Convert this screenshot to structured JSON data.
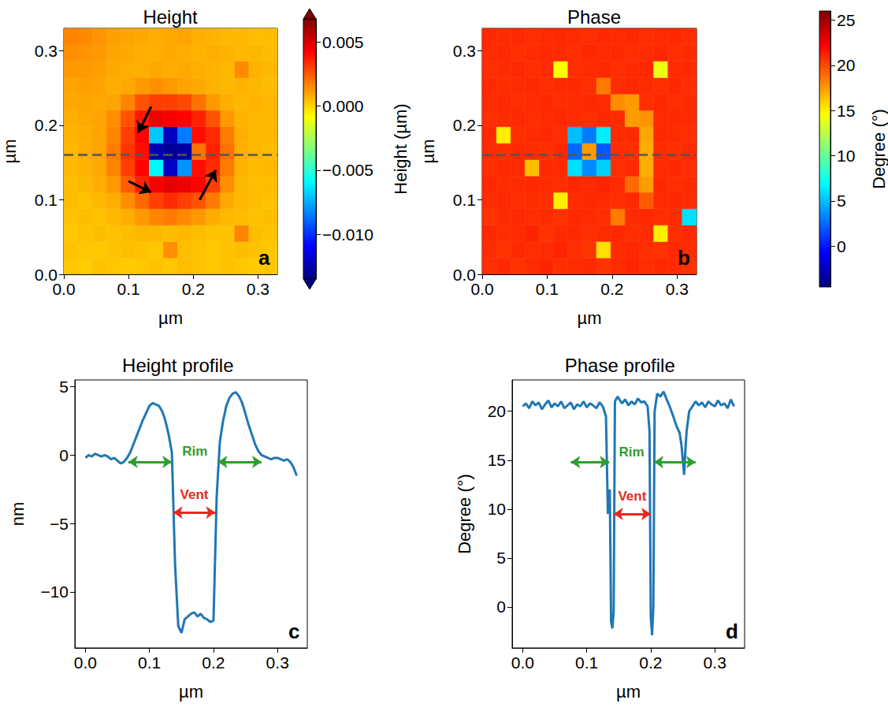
{
  "chart_data": [
    {
      "type": "heatmap",
      "title": "Height",
      "panel": "a",
      "xlabel": "µm",
      "ylabel": "µm",
      "x": [
        0.011,
        0.033,
        0.055,
        0.077,
        0.099,
        0.121,
        0.143,
        0.165,
        0.187,
        0.209,
        0.231,
        0.253,
        0.275,
        0.297,
        0.319
      ],
      "y": [
        0.011,
        0.033,
        0.055,
        0.077,
        0.099,
        0.121,
        0.143,
        0.165,
        0.187,
        0.209,
        0.231,
        0.253,
        0.275,
        0.297,
        0.319
      ],
      "z": [
        [
          0.0003,
          0.0002,
          0.0004,
          0.0003,
          0.0002,
          0.0003,
          0.0004,
          0.0003,
          0.0005,
          0.0004,
          0.0003,
          0.0004,
          0.0003,
          0.0002,
          0.0003
        ],
        [
          0.0004,
          0.0003,
          0.0003,
          0.0004,
          0.0005,
          0.0004,
          0.0003,
          0.0014,
          0.0005,
          0.0004,
          0.0003,
          0.0004,
          0.0005,
          0.0004,
          0.0003
        ],
        [
          0.0003,
          0.0004,
          0.0005,
          0.0004,
          0.0005,
          0.0006,
          0.0006,
          0.0005,
          0.0006,
          0.0005,
          0.0004,
          0.0004,
          0.0016,
          0.0005,
          0.0004
        ],
        [
          0.0004,
          0.0005,
          0.0004,
          0.0006,
          0.0008,
          0.0012,
          0.0016,
          0.0018,
          0.0015,
          0.0012,
          0.0008,
          0.0006,
          0.0005,
          0.0004,
          0.0005
        ],
        [
          0.0005,
          0.0004,
          0.0006,
          0.0008,
          0.0014,
          0.0022,
          0.003,
          0.0034,
          0.003,
          0.0026,
          0.0018,
          0.0009,
          0.0006,
          0.0005,
          0.0004
        ],
        [
          0.0005,
          0.0006,
          0.0008,
          0.0012,
          0.0024,
          0.0036,
          0.0044,
          0.0048,
          0.0046,
          0.0042,
          0.003,
          0.0014,
          0.0006,
          0.0005,
          0.0005
        ],
        [
          0.0006,
          0.0007,
          0.0009,
          0.0016,
          0.003,
          0.0042,
          -0.006,
          -0.012,
          -0.008,
          0.004,
          0.0034,
          0.0018,
          0.0007,
          0.0005,
          0.0006
        ],
        [
          0.0006,
          0.0008,
          0.001,
          0.0018,
          0.0032,
          0.004,
          -0.0125,
          -0.013,
          -0.0128,
          0.002,
          0.0036,
          0.002,
          0.0008,
          0.0006,
          0.0005
        ],
        [
          0.0007,
          0.0008,
          0.001,
          0.0016,
          0.003,
          0.0042,
          -0.007,
          -0.0122,
          -0.0085,
          0.004,
          0.0034,
          0.0018,
          0.0008,
          0.0006,
          0.0006
        ],
        [
          0.0008,
          0.0009,
          0.001,
          0.0014,
          0.0026,
          0.0038,
          0.0046,
          0.0044,
          0.0042,
          0.0036,
          0.0026,
          0.0012,
          0.0007,
          0.0006,
          0.0006
        ],
        [
          0.0009,
          0.001,
          0.0009,
          0.001,
          0.0016,
          0.0026,
          0.003,
          0.003,
          0.0028,
          0.002,
          0.0012,
          0.0008,
          0.0006,
          0.0007,
          0.0006
        ],
        [
          0.001,
          0.0011,
          0.001,
          0.0008,
          0.0009,
          0.0012,
          0.0014,
          0.0012,
          0.001,
          0.0009,
          0.0007,
          0.0006,
          0.0007,
          0.0006,
          0.0005
        ],
        [
          0.0012,
          0.0012,
          0.0011,
          0.0009,
          0.0008,
          0.0008,
          0.0009,
          0.0008,
          0.0009,
          0.0008,
          0.0007,
          0.0006,
          0.0015,
          0.0007,
          0.0006
        ],
        [
          0.0014,
          0.0013,
          0.0012,
          0.001,
          0.0009,
          0.0008,
          0.0008,
          0.0009,
          0.0008,
          0.0007,
          0.0008,
          0.0007,
          0.0006,
          0.0006,
          0.0005
        ],
        [
          0.0016,
          0.0015,
          0.0013,
          0.0011,
          0.001,
          0.0009,
          0.0008,
          0.0009,
          0.001,
          0.0008,
          0.0007,
          0.0006,
          0.0006,
          0.0005,
          0.0005
        ]
      ],
      "xlim": [
        0,
        0.33
      ],
      "ylim": [
        0,
        0.33
      ],
      "xticks": [
        {
          "value": 0,
          "label": "0.0"
        },
        {
          "value": 0.1,
          "label": "0.1"
        },
        {
          "value": 0.2,
          "label": "0.2"
        },
        {
          "value": 0.3,
          "label": "0.3"
        }
      ],
      "yticks": [
        {
          "value": 0,
          "label": "0.0"
        },
        {
          "value": 0.1,
          "label": "0.1"
        },
        {
          "value": 0.2,
          "label": "0.2"
        },
        {
          "value": 0.3,
          "label": "0.3"
        }
      ],
      "colorbar": {
        "label": "Height (µm)",
        "range": [
          -0.0135,
          0.0068
        ],
        "ticks": [
          {
            "value": -0.01,
            "label": "−0.010"
          },
          {
            "value": -0.005,
            "label": "−0.005"
          },
          {
            "value": 0,
            "label": "0.000"
          },
          {
            "value": 0.005,
            "label": "0.005"
          }
        ]
      },
      "annotations": [
        {
          "hline": 0.16,
          "line_style": "dashed",
          "color": "#555555"
        },
        {
          "arrow": [
            [
              0.135,
              0.225
            ],
            [
              0.115,
              0.19
            ]
          ],
          "color": "#000000"
        },
        {
          "arrow": [
            [
              0.1,
              0.125
            ],
            [
              0.135,
              0.11
            ]
          ],
          "color": "#000000"
        },
        {
          "arrow": [
            [
              0.21,
              0.1
            ],
            [
              0.235,
              0.14
            ]
          ],
          "color": "#000000"
        }
      ]
    },
    {
      "type": "heatmap",
      "title": "Phase",
      "panel": "b",
      "xlabel": "µm",
      "ylabel": "µm",
      "x": [
        0.011,
        0.033,
        0.055,
        0.077,
        0.099,
        0.121,
        0.143,
        0.165,
        0.187,
        0.209,
        0.231,
        0.253,
        0.275,
        0.297,
        0.319
      ],
      "y": [
        0.011,
        0.033,
        0.055,
        0.077,
        0.099,
        0.121,
        0.143,
        0.165,
        0.187,
        0.209,
        0.231,
        0.253,
        0.275,
        0.297,
        0.319
      ],
      "z": [
        [
          20.8,
          21.0,
          20.7,
          20.9,
          21.1,
          20.8,
          20.9,
          21.0,
          20.7,
          20.9,
          21.1,
          20.8,
          21.0,
          20.9,
          20.7
        ],
        [
          20.9,
          20.7,
          21.0,
          20.8,
          20.9,
          21.1,
          20.8,
          20.6,
          15.5,
          20.9,
          21.0,
          20.8,
          20.7,
          21.0,
          20.9
        ],
        [
          21.0,
          20.8,
          20.9,
          21.1,
          20.7,
          20.9,
          21.0,
          20.8,
          20.9,
          21.0,
          20.8,
          20.9,
          15.0,
          20.8,
          21.0
        ],
        [
          20.7,
          20.9,
          21.0,
          20.8,
          20.9,
          20.7,
          21.0,
          20.9,
          20.8,
          18.5,
          20.9,
          21.0,
          20.8,
          20.9,
          6.0
        ],
        [
          20.9,
          21.0,
          20.8,
          20.9,
          20.8,
          15.0,
          20.9,
          21.0,
          20.9,
          20.8,
          21.0,
          19.5,
          20.9,
          21.0,
          20.8
        ],
        [
          21.0,
          20.8,
          20.9,
          21.0,
          20.9,
          20.8,
          21.0,
          20.9,
          21.1,
          20.9,
          19.0,
          17.5,
          21.0,
          20.8,
          20.9
        ],
        [
          20.8,
          21.0,
          20.9,
          16.5,
          21.0,
          20.9,
          6.0,
          3.5,
          5.5,
          20.8,
          21.0,
          17.0,
          20.9,
          21.0,
          20.8
        ],
        [
          20.9,
          20.8,
          21.0,
          20.9,
          20.8,
          21.0,
          2.5,
          17.5,
          2.0,
          20.9,
          20.8,
          17.0,
          20.9,
          20.8,
          21.0
        ],
        [
          21.0,
          15.0,
          20.8,
          20.9,
          21.0,
          20.8,
          5.0,
          3.0,
          6.5,
          20.9,
          20.9,
          17.2,
          21.0,
          20.9,
          20.8
        ],
        [
          20.8,
          20.9,
          21.0,
          20.8,
          20.9,
          21.0,
          20.9,
          20.8,
          21.0,
          20.9,
          17.5,
          17.8,
          20.9,
          21.0,
          20.9
        ],
        [
          20.9,
          21.0,
          20.8,
          20.9,
          21.0,
          20.8,
          20.9,
          21.0,
          20.9,
          18.0,
          17.6,
          20.8,
          21.0,
          20.8,
          20.9
        ],
        [
          21.0,
          20.8,
          20.9,
          21.0,
          20.8,
          20.9,
          21.0,
          20.8,
          18.5,
          20.9,
          21.0,
          20.9,
          20.8,
          21.0,
          20.8
        ],
        [
          20.8,
          20.9,
          21.0,
          20.8,
          20.9,
          14.5,
          20.8,
          20.9,
          21.0,
          20.8,
          20.9,
          21.0,
          14.0,
          20.9,
          21.0
        ],
        [
          20.9,
          21.0,
          20.8,
          20.9,
          21.0,
          20.9,
          20.8,
          21.0,
          20.9,
          21.0,
          20.8,
          20.9,
          21.0,
          20.8,
          20.9
        ],
        [
          21.0,
          20.9,
          21.0,
          20.8,
          20.9,
          21.0,
          20.9,
          20.8,
          21.0,
          20.9,
          21.0,
          20.8,
          20.9,
          21.0,
          20.8
        ]
      ],
      "xlim": [
        0,
        0.33
      ],
      "ylim": [
        0,
        0.33
      ],
      "xticks": [
        {
          "value": 0,
          "label": "0.0"
        },
        {
          "value": 0.1,
          "label": "0.1"
        },
        {
          "value": 0.2,
          "label": "0.2"
        },
        {
          "value": 0.3,
          "label": "0.3"
        }
      ],
      "yticks": [
        {
          "value": 0,
          "label": "0.0"
        },
        {
          "value": 0.1,
          "label": "0.1"
        },
        {
          "value": 0.2,
          "label": "0.2"
        },
        {
          "value": 0.3,
          "label": "0.3"
        }
      ],
      "colorbar": {
        "label": "Degree (°)",
        "range": [
          -4.5,
          26
        ],
        "ticks": [
          0,
          5,
          10,
          15,
          20,
          25
        ]
      },
      "annotations": [
        {
          "hline": 0.16,
          "line_style": "dashed",
          "color": "#555555"
        }
      ]
    },
    {
      "type": "line",
      "title": "Height profile",
      "panel": "c",
      "xlabel": "µm",
      "ylabel": "nm",
      "color": "#1f77b4",
      "x": [
        0,
        0.005,
        0.01,
        0.015,
        0.02,
        0.025,
        0.03,
        0.035,
        0.04,
        0.045,
        0.05,
        0.055,
        0.06,
        0.065,
        0.07,
        0.075,
        0.08,
        0.085,
        0.09,
        0.095,
        0.1,
        0.105,
        0.11,
        0.115,
        0.12,
        0.125,
        0.13,
        0.135,
        0.14,
        0.145,
        0.15,
        0.155,
        0.16,
        0.165,
        0.17,
        0.175,
        0.18,
        0.185,
        0.19,
        0.195,
        0.2,
        0.205,
        0.21,
        0.215,
        0.22,
        0.225,
        0.23,
        0.235,
        0.24,
        0.245,
        0.25,
        0.255,
        0.26,
        0.265,
        0.27,
        0.275,
        0.28,
        0.285,
        0.29,
        0.295,
        0.3,
        0.305,
        0.31,
        0.315,
        0.32,
        0.325,
        0.33
      ],
      "values": [
        -0.2,
        0.0,
        -0.1,
        0.1,
        0.0,
        -0.1,
        0.0,
        -0.1,
        -0.3,
        -0.2,
        -0.4,
        -0.6,
        -0.5,
        -0.2,
        0.2,
        0.8,
        1.4,
        2.0,
        2.6,
        3.1,
        3.6,
        3.8,
        3.7,
        3.6,
        3.2,
        2.5,
        1.5,
        0.2,
        -8.0,
        -12.5,
        -13.0,
        -12.0,
        -11.8,
        -11.6,
        -11.5,
        -11.8,
        -11.6,
        -11.9,
        -12.0,
        -12.2,
        -12.1,
        -3.0,
        1.0,
        2.5,
        3.6,
        4.2,
        4.5,
        4.6,
        4.3,
        3.8,
        3.0,
        2.2,
        1.5,
        0.8,
        0.3,
        0.0,
        -0.1,
        -0.2,
        -0.3,
        -0.2,
        -0.2,
        -0.3,
        -0.4,
        -0.3,
        -0.5,
        -0.9,
        -1.5
      ],
      "xlim": [
        -0.0165,
        0.3465
      ],
      "ylim": [
        -14.1,
        5.5
      ],
      "xticks": [
        {
          "value": 0,
          "label": "0.0"
        },
        {
          "value": 0.1,
          "label": "0.1"
        },
        {
          "value": 0.2,
          "label": "0.2"
        },
        {
          "value": 0.3,
          "label": "0.3"
        }
      ],
      "yticks": [
        {
          "value": -10,
          "label": "−10"
        },
        {
          "value": -5,
          "label": "−5"
        },
        0,
        5
      ],
      "annotations": [
        {
          "text": "Rim",
          "color": "#2e9e2e",
          "spans": [
            [
              0.067,
              0.135
            ],
            [
              0.207,
              0.275
            ]
          ],
          "y": -0.5,
          "text_at": [
            0.171,
            0.3
          ]
        },
        {
          "text": "Vent",
          "color": "#e8281e",
          "spans": [
            [
              0.137,
              0.203
            ]
          ],
          "y": -4.2,
          "text_at": [
            0.17,
            -2.9
          ]
        }
      ]
    },
    {
      "type": "line",
      "title": "Phase profile",
      "panel": "d",
      "xlabel": "µm",
      "ylabel": "Degree (°)",
      "color": "#1f77b4",
      "x": [
        0,
        0.005,
        0.01,
        0.015,
        0.02,
        0.025,
        0.03,
        0.035,
        0.04,
        0.045,
        0.05,
        0.055,
        0.06,
        0.065,
        0.07,
        0.075,
        0.08,
        0.085,
        0.09,
        0.095,
        0.1,
        0.105,
        0.11,
        0.115,
        0.12,
        0.125,
        0.13,
        0.133,
        0.136,
        0.138,
        0.14,
        0.142,
        0.144,
        0.148,
        0.155,
        0.16,
        0.165,
        0.17,
        0.175,
        0.18,
        0.185,
        0.19,
        0.195,
        0.198,
        0.2,
        0.202,
        0.204,
        0.206,
        0.21,
        0.215,
        0.22,
        0.225,
        0.23,
        0.235,
        0.24,
        0.245,
        0.248,
        0.25,
        0.252,
        0.254,
        0.256,
        0.26,
        0.265,
        0.27,
        0.275,
        0.28,
        0.285,
        0.29,
        0.295,
        0.3,
        0.305,
        0.31,
        0.315,
        0.32,
        0.325,
        0.33
      ],
      "values": [
        20.5,
        20.8,
        20.3,
        21.0,
        20.6,
        20.9,
        20.2,
        20.7,
        21.1,
        20.4,
        20.8,
        20.5,
        21.0,
        20.3,
        20.6,
        20.9,
        20.2,
        20.7,
        20.5,
        21.0,
        20.4,
        20.8,
        20.6,
        20.3,
        20.9,
        20.5,
        19.5,
        9.5,
        12.0,
        -1.5,
        -2.2,
        -0.5,
        21.0,
        21.5,
        20.8,
        21.2,
        20.6,
        21.0,
        20.7,
        21.3,
        20.9,
        21.0,
        20.5,
        18.0,
        -1.0,
        -2.9,
        0.0,
        20.0,
        21.8,
        21.5,
        22.0,
        21.2,
        20.4,
        19.5,
        18.5,
        17.8,
        16.5,
        15.0,
        13.5,
        16.0,
        18.0,
        20.0,
        20.5,
        21.0,
        20.6,
        20.9,
        20.4,
        21.0,
        20.7,
        20.5,
        21.1,
        20.6,
        20.8,
        20.3,
        21.2,
        20.5
      ],
      "xlim": [
        -0.0165,
        0.3465
      ],
      "ylim": [
        -4.2,
        23.2
      ],
      "xticks": [
        {
          "value": 0,
          "label": "0.0"
        },
        {
          "value": 0.1,
          "label": "0.1"
        },
        {
          "value": 0.2,
          "label": "0.2"
        },
        {
          "value": 0.3,
          "label": "0.3"
        }
      ],
      "yticks": [
        0,
        5,
        10,
        15,
        20
      ],
      "annotations": [
        {
          "text": "Rim",
          "color": "#2e9e2e",
          "spans": [
            [
              0.075,
              0.135
            ],
            [
              0.205,
              0.27
            ]
          ],
          "y": 14.8,
          "text_at": [
            0.17,
            15.8
          ]
        },
        {
          "text": "Vent",
          "color": "#e8281e",
          "spans": [
            [
              0.142,
              0.2
            ]
          ],
          "y": 9.5,
          "text_at": [
            0.171,
            11.3
          ]
        }
      ]
    }
  ]
}
